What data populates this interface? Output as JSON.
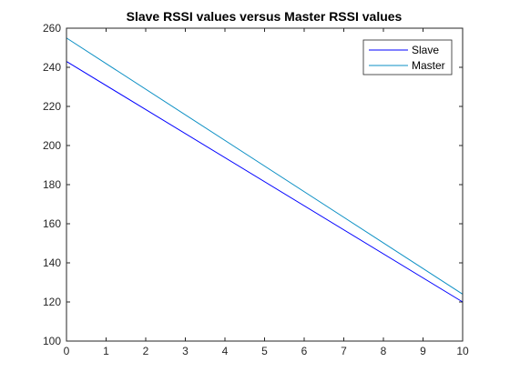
{
  "chart_data": {
    "type": "line",
    "title": "Slave RSSI values versus Master RSSI values",
    "xlabel": "",
    "ylabel": "",
    "xlim": [
      0,
      10
    ],
    "ylim": [
      100,
      260
    ],
    "x_ticks": [
      0,
      1,
      2,
      3,
      4,
      5,
      6,
      7,
      8,
      9,
      10
    ],
    "y_ticks": [
      100,
      120,
      140,
      160,
      180,
      200,
      220,
      240,
      260
    ],
    "grid": false,
    "legend_position": "top-right",
    "x": [
      0,
      10
    ],
    "series": [
      {
        "name": "Slave",
        "values": [
          243,
          120
        ],
        "color": "#0000ff"
      },
      {
        "name": "Master",
        "values": [
          255,
          124
        ],
        "color": "#0b8fc4"
      }
    ]
  }
}
